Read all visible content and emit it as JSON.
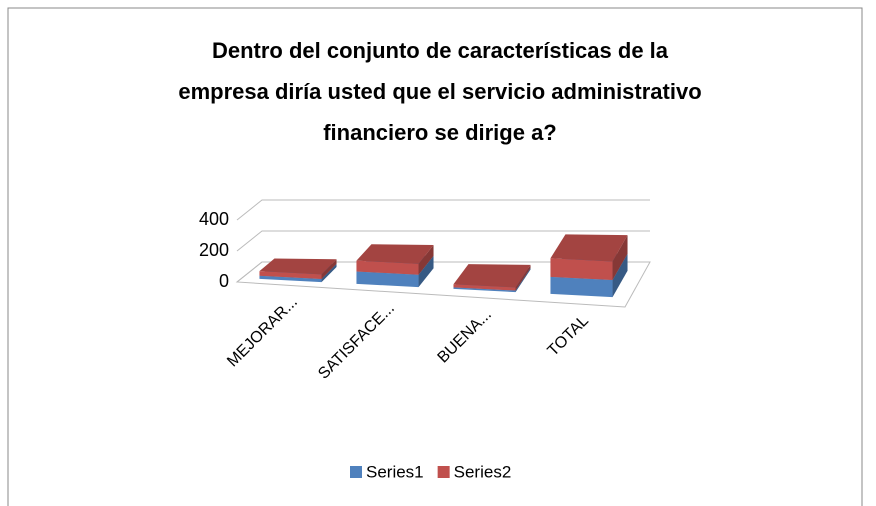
{
  "chart_data": {
    "type": "bar3d_stacked",
    "title": [
      "Dentro del conjunto de características de la",
      "empresa diría usted que el servicio administrativo",
      "financiero se dirige a?"
    ],
    "categories": [
      "MEJORAR...",
      "SATISFACE...",
      "BUENA...",
      "TOTAL"
    ],
    "series": [
      {
        "name": "Series1",
        "color": "#4f81bd",
        "values": [
          20,
          80,
          10,
          110
        ]
      },
      {
        "name": "Series2",
        "color": "#c0504d",
        "values": [
          30,
          70,
          20,
          120
        ]
      }
    ],
    "ylim": [
      0,
      400
    ],
    "yticks": [
      0,
      200,
      400
    ],
    "grid": true,
    "legend": "bottom"
  }
}
